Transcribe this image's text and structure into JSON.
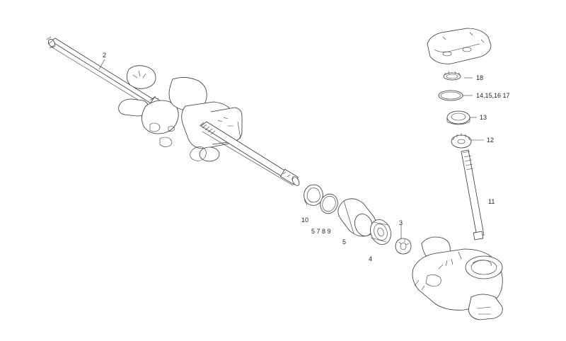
{
  "labels": {
    "p2": "2",
    "p3": "3",
    "p4": "4",
    "p5": "5",
    "p5678": "5 7 8 9",
    "p10": "10",
    "p11": "11",
    "p12": "12",
    "p13": "13",
    "p14": "14,15,16 17",
    "p18": "18"
  }
}
